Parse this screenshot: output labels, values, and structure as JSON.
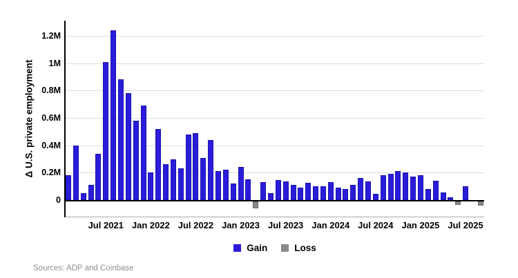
{
  "chart_data": {
    "type": "bar",
    "title": "",
    "xlabel": "",
    "ylabel": "Δ U.S. private employment",
    "unit": "millions of jobs (monthly change)",
    "ylim": [
      -0.08,
      1.32
    ],
    "grid": "horizontal",
    "legend_position": "bottom-center",
    "categories": [
      "Feb 2021",
      "Mar 2021",
      "Apr 2021",
      "May 2021",
      "Jun 2021",
      "Jul 2021",
      "Aug 2021",
      "Sep 2021",
      "Oct 2021",
      "Nov 2021",
      "Dec 2021",
      "Jan 2022",
      "Feb 2022",
      "Mar 2022",
      "Apr 2022",
      "May 2022",
      "Jun 2022",
      "Jul 2022",
      "Aug 2022",
      "Sep 2022",
      "Oct 2022",
      "Nov 2022",
      "Dec 2022",
      "Jan 2023",
      "Feb 2023",
      "Mar 2023",
      "Apr 2023",
      "May 2023",
      "Jun 2023",
      "Jul 2023",
      "Aug 2023",
      "Sep 2023",
      "Oct 2023",
      "Nov 2023",
      "Dec 2023",
      "Jan 2024",
      "Feb 2024",
      "Mar 2024",
      "Apr 2024",
      "May 2024",
      "Jun 2024",
      "Jul 2024",
      "Aug 2024",
      "Sep 2024",
      "Oct 2024",
      "Nov 2024",
      "Dec 2024",
      "Jan 2025",
      "Feb 2025",
      "Mar 2025",
      "Apr 2025",
      "May 2025",
      "Jun 2025",
      "Jul 2025",
      "Aug 2025",
      "Sep 2025"
    ],
    "values": [
      0.18,
      0.4,
      0.05,
      0.11,
      0.34,
      1.01,
      1.24,
      0.88,
      0.78,
      0.58,
      0.69,
      0.2,
      0.52,
      0.26,
      0.3,
      0.23,
      0.48,
      0.49,
      0.31,
      0.44,
      0.21,
      0.22,
      0.12,
      0.24,
      0.15,
      -0.05,
      0.13,
      0.05,
      0.145,
      0.135,
      0.11,
      0.09,
      0.125,
      0.1,
      0.1,
      0.13,
      0.09,
      0.08,
      0.11,
      0.16,
      0.135,
      0.045,
      0.18,
      0.19,
      0.21,
      0.2,
      0.17,
      0.18,
      0.08,
      0.14,
      0.055,
      0.02,
      -0.025,
      0.1,
      0.0,
      -0.03
    ],
    "ytick_labels": [
      "0",
      "0.2M",
      "0.4M",
      "0.6M",
      "0.8M",
      "1M",
      "1.2M"
    ],
    "ytick_values": [
      0,
      0.2,
      0.4,
      0.6,
      0.8,
      1.0,
      1.2
    ],
    "xtick_labels": [
      "Jul 2021",
      "Jan 2022",
      "Jul 2022",
      "Jan 2023",
      "Jul 2023",
      "Jan 2024",
      "Jul 2024",
      "Jan 2025",
      "Jul 2025"
    ],
    "xtick_month_indices": [
      5,
      11,
      17,
      23,
      29,
      35,
      41,
      47,
      53
    ],
    "legend": [
      {
        "label": "Gain",
        "color": "#2B1CDB"
      },
      {
        "label": "Loss",
        "color": "#8A8A8A"
      }
    ],
    "colors": {
      "gain": "#2B1CDB",
      "loss": "#8A8A8A",
      "grid": "#DCDCDC",
      "axis": "#000000",
      "frame": "#ABABAB"
    }
  },
  "footer": {
    "sources": "Sources: ADP and Coinbase"
  }
}
